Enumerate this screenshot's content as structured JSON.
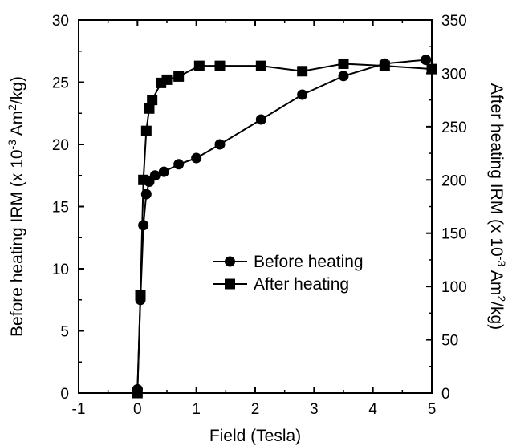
{
  "chart_data": {
    "type": "line",
    "x_axis": {
      "label": "Field (Tesla)",
      "range": [
        -1,
        5
      ],
      "ticks": [
        "-1",
        "0",
        "1",
        "2",
        "3",
        "4",
        "5"
      ]
    },
    "y_axis_left": {
      "label_parts": [
        "Before heating IRM (x 10",
        "-3",
        " Am",
        "2",
        "/kg)"
      ],
      "range": [
        0,
        30
      ],
      "ticks": [
        "0",
        "5",
        "10",
        "15",
        "20",
        "25",
        "30"
      ]
    },
    "y_axis_right": {
      "label_parts": [
        "After heating IRM (x 10",
        "-3",
        " Am",
        "2",
        "/kg)"
      ],
      "range": [
        0,
        350
      ],
      "ticks": [
        "0",
        "50",
        "100",
        "150",
        "200",
        "250",
        "300",
        "350"
      ]
    },
    "legend_position": "center-right",
    "grid": false,
    "series": [
      {
        "name": "Before heating",
        "marker": "circle",
        "axis": "left",
        "points": [
          [
            0,
            0.3
          ],
          [
            0.05,
            7.5
          ],
          [
            0.1,
            13.5
          ],
          [
            0.15,
            16.0
          ],
          [
            0.2,
            17.0
          ],
          [
            0.3,
            17.5
          ],
          [
            0.45,
            17.8
          ],
          [
            0.7,
            18.4
          ],
          [
            1.0,
            18.9
          ],
          [
            1.4,
            20.0
          ],
          [
            2.1,
            22.0
          ],
          [
            2.8,
            24.0
          ],
          [
            3.5,
            25.5
          ],
          [
            4.2,
            26.5
          ],
          [
            4.9,
            26.8
          ]
        ]
      },
      {
        "name": "After heating",
        "marker": "square",
        "axis": "right",
        "points": [
          [
            0,
            0
          ],
          [
            0.05,
            92
          ],
          [
            0.1,
            200
          ],
          [
            0.15,
            246
          ],
          [
            0.2,
            267
          ],
          [
            0.25,
            275
          ],
          [
            0.4,
            291
          ],
          [
            0.5,
            294
          ],
          [
            0.7,
            297
          ],
          [
            1.05,
            307
          ],
          [
            1.4,
            307
          ],
          [
            2.1,
            307
          ],
          [
            2.8,
            302
          ],
          [
            3.5,
            309
          ],
          [
            4.2,
            307
          ],
          [
            5.0,
            304
          ]
        ]
      }
    ]
  }
}
